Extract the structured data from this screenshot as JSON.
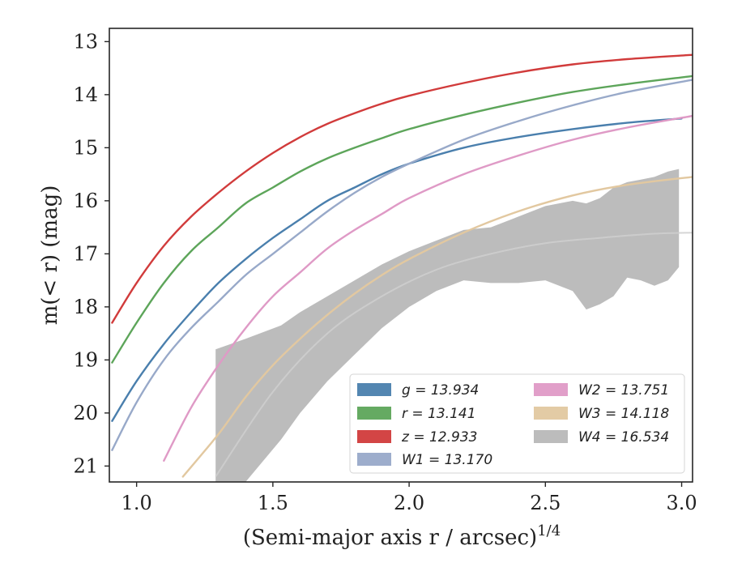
{
  "chart_data": {
    "type": "line",
    "xlabel": "(Semi-major axis r / arcsec)",
    "xlabel_sup": "1/4",
    "ylabel": "m(< r) (mag)",
    "xlim": [
      0.9,
      3.04
    ],
    "ylim": [
      21.3,
      12.75
    ],
    "y_inverted": true,
    "x_ticks": [
      "1.0",
      "1.5",
      "2.0",
      "2.5",
      "3.0"
    ],
    "y_ticks": [
      "13",
      "14",
      "15",
      "16",
      "17",
      "18",
      "19",
      "20",
      "21"
    ],
    "grid": false,
    "legend_position": "lower-right",
    "series": [
      {
        "name": "g = 13.934",
        "color": "#4a7fad",
        "kind": "line",
        "x": [
          0.91,
          1.0,
          1.1,
          1.2,
          1.3,
          1.4,
          1.5,
          1.6,
          1.7,
          1.8,
          1.9,
          2.0,
          2.2,
          2.4,
          2.6,
          2.8,
          3.0
        ],
        "y": [
          20.15,
          19.4,
          18.7,
          18.1,
          17.55,
          17.1,
          16.7,
          16.35,
          16.0,
          15.75,
          15.5,
          15.3,
          15.0,
          14.8,
          14.65,
          14.53,
          14.45
        ]
      },
      {
        "name": "r = 13.141",
        "color": "#5da55a",
        "kind": "line",
        "x": [
          0.91,
          1.0,
          1.1,
          1.2,
          1.3,
          1.4,
          1.5,
          1.6,
          1.7,
          1.8,
          1.9,
          2.0,
          2.2,
          2.4,
          2.6,
          2.8,
          3.04
        ],
        "y": [
          19.05,
          18.3,
          17.55,
          16.95,
          16.5,
          16.05,
          15.75,
          15.45,
          15.2,
          15.0,
          14.82,
          14.65,
          14.38,
          14.15,
          13.95,
          13.8,
          13.65
        ]
      },
      {
        "name": "z = 12.933",
        "color": "#d13b3b",
        "kind": "line",
        "x": [
          0.91,
          1.0,
          1.1,
          1.2,
          1.3,
          1.4,
          1.5,
          1.6,
          1.7,
          1.8,
          1.9,
          2.0,
          2.2,
          2.4,
          2.6,
          2.8,
          3.04
        ],
        "y": [
          18.3,
          17.55,
          16.85,
          16.3,
          15.85,
          15.45,
          15.1,
          14.8,
          14.55,
          14.35,
          14.17,
          14.02,
          13.78,
          13.58,
          13.43,
          13.33,
          13.25
        ]
      },
      {
        "name": "W1 = 13.170",
        "color": "#98a9c9",
        "kind": "line",
        "x": [
          0.91,
          1.0,
          1.1,
          1.2,
          1.3,
          1.4,
          1.5,
          1.6,
          1.7,
          1.8,
          1.9,
          2.0,
          2.2,
          2.4,
          2.6,
          2.8,
          3.04
        ],
        "y": [
          20.7,
          19.8,
          19.0,
          18.4,
          17.9,
          17.4,
          17.0,
          16.6,
          16.2,
          15.85,
          15.55,
          15.3,
          14.85,
          14.5,
          14.2,
          13.95,
          13.72
        ]
      },
      {
        "name": "W2 = 13.751",
        "color": "#df9ac6",
        "kind": "line",
        "x": [
          1.1,
          1.2,
          1.3,
          1.4,
          1.5,
          1.6,
          1.7,
          1.8,
          1.9,
          2.0,
          2.2,
          2.4,
          2.6,
          2.8,
          3.04
        ],
        "y": [
          20.9,
          19.9,
          19.1,
          18.4,
          17.8,
          17.35,
          16.9,
          16.55,
          16.25,
          15.95,
          15.5,
          15.15,
          14.85,
          14.62,
          14.4
        ]
      },
      {
        "name": "W3 = 14.118",
        "color": "#e2c8a0",
        "kind": "line",
        "x": [
          1.17,
          1.3,
          1.4,
          1.5,
          1.6,
          1.7,
          1.8,
          1.9,
          2.0,
          2.2,
          2.4,
          2.6,
          2.8,
          3.04
        ],
        "y": [
          21.2,
          20.4,
          19.7,
          19.1,
          18.6,
          18.15,
          17.75,
          17.4,
          17.1,
          16.6,
          16.2,
          15.9,
          15.7,
          15.55
        ]
      },
      {
        "name": "W4 = 16.534",
        "color": "#b5b5b5",
        "kind": "band",
        "x": [
          1.29,
          1.4,
          1.53,
          1.6,
          1.7,
          1.8,
          1.9,
          2.0,
          2.1,
          2.2,
          2.3,
          2.4,
          2.5,
          2.6,
          2.65,
          2.7,
          2.75,
          2.8,
          2.85,
          2.9,
          2.95,
          2.99
        ],
        "y_upper": [
          18.8,
          18.6,
          18.35,
          18.1,
          17.8,
          17.5,
          17.2,
          16.95,
          16.75,
          16.55,
          16.5,
          16.3,
          16.1,
          16.0,
          16.05,
          15.95,
          15.75,
          15.65,
          15.6,
          15.55,
          15.45,
          15.4
        ],
        "y_lower": [
          21.3,
          21.3,
          20.5,
          20.0,
          19.4,
          18.9,
          18.4,
          18.0,
          17.7,
          17.5,
          17.55,
          17.55,
          17.5,
          17.7,
          18.05,
          17.95,
          17.8,
          17.45,
          17.5,
          17.6,
          17.5,
          17.25
        ],
        "median_x": [
          1.29,
          1.5,
          1.7,
          1.9,
          2.1,
          2.3,
          2.5,
          2.7,
          2.9,
          3.04
        ],
        "median_y": [
          21.2,
          19.6,
          18.5,
          17.8,
          17.3,
          17.0,
          16.8,
          16.7,
          16.62,
          16.6
        ]
      }
    ]
  }
}
